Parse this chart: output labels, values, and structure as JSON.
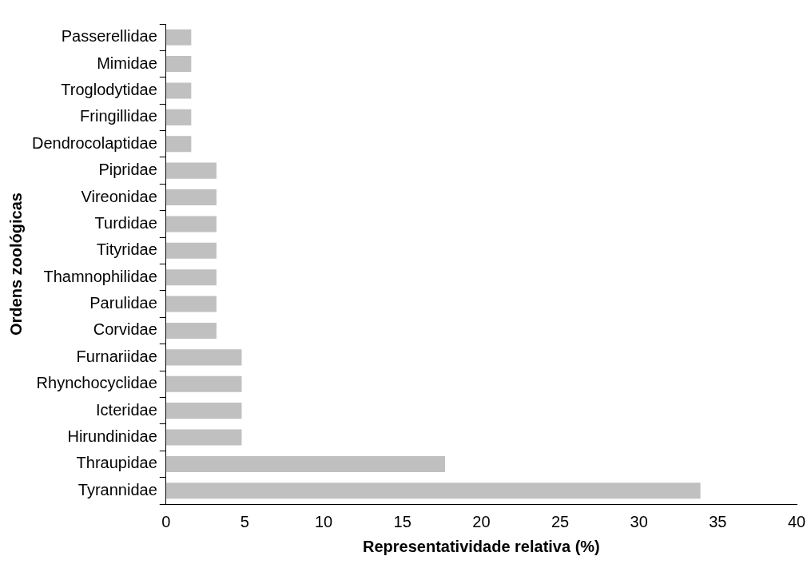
{
  "chart_data": {
    "type": "bar",
    "orientation": "horizontal",
    "xlabel": "Representatividade relativa (%)",
    "ylabel": "Ordens zoológicas",
    "categories": [
      "Passerellidae",
      "Mimidae",
      "Troglodytidae",
      "Fringillidae",
      "Dendrocolaptidae",
      "Pipridae",
      "Vireonidae",
      "Turdidae",
      "Tityridae",
      "Thamnophilidae",
      "Parulidae",
      "Corvidae",
      "Furnariidae",
      "Rhynchocyclidae",
      "Icteridae",
      "Hirundinidae",
      "Thraupidae",
      "Tyrannidae"
    ],
    "values": [
      1.6,
      1.6,
      1.6,
      1.6,
      1.6,
      3.2,
      3.2,
      3.2,
      3.2,
      3.2,
      3.2,
      3.2,
      4.8,
      4.8,
      4.8,
      4.8,
      17.7,
      33.9
    ],
    "color": "#c0c0c0",
    "xlim": [
      0,
      40
    ],
    "xticks": [
      0,
      5,
      10,
      15,
      20,
      25,
      30,
      35,
      40
    ],
    "grid": false,
    "legend": false
  }
}
